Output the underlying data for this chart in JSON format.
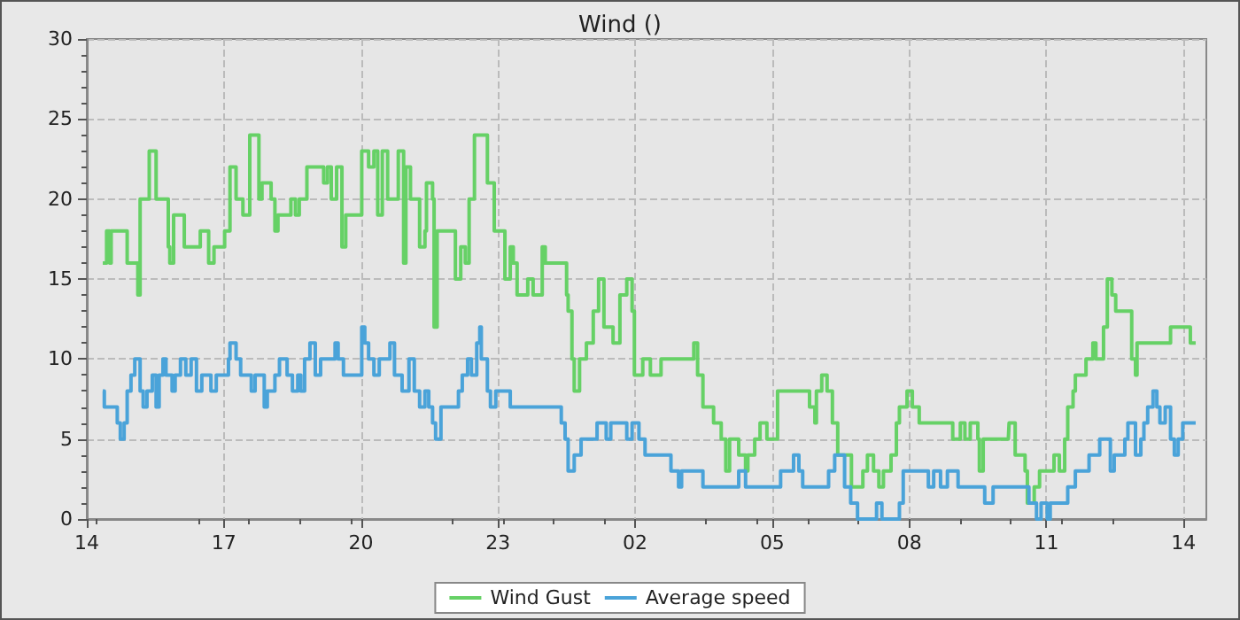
{
  "chart_data": {
    "type": "step",
    "title": "Wind ()",
    "xlim": [
      "--01-01T14:00",
      "--01-02T14:30"
    ],
    "ylim": [
      0,
      30
    ],
    "xticks": [
      {
        "value": "--01-01T14:00",
        "label": "14"
      },
      {
        "value": "--01-01T17:00",
        "label": "17"
      },
      {
        "value": "--01-01T20:00",
        "label": "20"
      },
      {
        "value": "--01-01T23:00",
        "label": "23"
      },
      {
        "value": "--01-02T02:00",
        "label": "02"
      },
      {
        "value": "--01-02T05:00",
        "label": "05"
      },
      {
        "value": "--01-02T08:00",
        "label": "08"
      },
      {
        "value": "--01-02T11:00",
        "label": "11"
      },
      {
        "value": "--01-02T14:00",
        "label": "14"
      }
    ],
    "yticks": [
      0,
      5,
      10,
      15,
      20,
      25,
      30
    ],
    "grid": true,
    "legend": "bottom",
    "marker": "none",
    "line_style": "solid",
    "series": [
      {
        "name": "Wind Gust",
        "color": "#66d166",
        "x": [
          "--01-01T14:21",
          "--01-01T14:26",
          "--01-01T14:30",
          "--01-01T14:32",
          "--01-01T14:51",
          "--01-01T14:53",
          "--01-01T15:05",
          "--01-01T15:07",
          "--01-01T15:10",
          "--01-01T15:22",
          "--01-01T15:31",
          "--01-01T15:47",
          "--01-01T15:49",
          "--01-01T15:54",
          "--01-01T16:01",
          "--01-01T16:08",
          "--01-01T16:20",
          "--01-01T16:29",
          "--01-01T16:40",
          "--01-01T16:47",
          "--01-01T17:01",
          "--01-01T17:08",
          "--01-01T17:16",
          "--01-01T17:25",
          "--01-01T17:34",
          "--01-01T17:46",
          "--01-01T17:50",
          "--01-01T18:02",
          "--01-01T18:07",
          "--01-01T18:11",
          "--01-01T18:23",
          "--01-01T18:28",
          "--01-01T18:34",
          "--01-01T18:39",
          "--01-01T18:49",
          "--01-01T19:07",
          "--01-01T19:11",
          "--01-01T19:16",
          "--01-01T19:21",
          "--01-01T19:28",
          "--01-01T19:35",
          "--01-01T19:40",
          "--01-01T20:01",
          "--01-01T20:10",
          "--01-01T20:17",
          "--01-01T20:22",
          "--01-01T20:28",
          "--01-01T20:35",
          "--01-01T20:49",
          "--01-01T20:56",
          "--01-01T20:59",
          "--01-01T21:05",
          "--01-01T21:17",
          "--01-01T21:24",
          "--01-01T21:26",
          "--01-01T21:34",
          "--01-01T21:36",
          "--01-01T21:40",
          "--01-01T22:01",
          "--01-01T22:04",
          "--01-01T22:11",
          "--01-01T22:17",
          "--01-01T22:22",
          "--01-01T22:29",
          "--01-01T22:46",
          "--01-01T22:55",
          "--01-01T23:07",
          "--01-01T23:09",
          "--01-01T23:16",
          "--01-01T23:20",
          "--01-01T23:25",
          "--01-01T23:34",
          "--01-01T23:39",
          "--01-01T23:46",
          "--01-01T23:58",
          "--01-02T00:02",
          "--01-02T00:26",
          "--01-02T00:30",
          "--01-02T00:32",
          "--01-02T00:37",
          "--01-02T00:40",
          "--01-02T00:47",
          "--01-02T00:56",
          "--01-02T01:05",
          "--01-02T01:12",
          "--01-02T01:19",
          "--01-02T01:31",
          "--01-02T01:40",
          "--01-02T01:49",
          "--01-02T01:56",
          "--01-02T01:59",
          "--01-02T02:10",
          "--01-02T02:20",
          "--01-02T02:34",
          "--01-02T02:59",
          "--01-02T03:17",
          "--01-02T03:22",
          "--01-02T03:29",
          "--01-02T03:43",
          "--01-02T03:53",
          "--01-02T03:59",
          "--01-02T04:04",
          "--01-02T04:09",
          "--01-02T04:16",
          "--01-02T04:25",
          "--01-02T04:28",
          "--01-02T04:37",
          "--01-02T04:44",
          "--01-02T04:53",
          "--01-02T05:07",
          "--01-02T05:44",
          "--01-02T05:49",
          "--01-02T05:56",
          "--01-02T05:58",
          "--01-02T06:05",
          "--01-02T06:12",
          "--01-02T06:19",
          "--01-02T06:26",
          "--01-02T06:44",
          "--01-02T06:59",
          "--01-02T07:05",
          "--01-02T07:13",
          "--01-02T07:20",
          "--01-02T07:26",
          "--01-02T07:36",
          "--01-02T07:43",
          "--01-02T07:47",
          "--01-02T07:57",
          "--01-02T08:04",
          "--01-02T08:13",
          "--01-02T08:55",
          "--01-02T08:57",
          "--01-02T09:07",
          "--01-02T09:13",
          "--01-02T09:20",
          "--01-02T09:30",
          "--01-02T09:32",
          "--01-02T09:37",
          "--01-02T10:10",
          "--01-02T10:11",
          "--01-02T10:19",
          "--01-02T10:28",
          "--01-02T10:32",
          "--01-02T10:35",
          "--01-02T10:44",
          "--01-02T10:51",
          "--01-02T11:03",
          "--01-02T11:10",
          "--01-02T11:17",
          "--01-02T11:24",
          "--01-02T11:28",
          "--01-02T11:35",
          "--01-02T11:38",
          "--01-02T11:52",
          "--01-02T12:01",
          "--01-02T12:05",
          "--01-02T12:15",
          "--01-02T12:20",
          "--01-02T12:26",
          "--01-02T12:31",
          "--01-02T12:38",
          "--01-02T12:52",
          "--01-02T12:57",
          "--01-02T12:59",
          "--01-02T13:13",
          "--01-02T13:18",
          "--01-02T13:43",
          "--01-02T14:09",
          "--01-02T14:16"
        ],
        "values": [
          16,
          18,
          16,
          18,
          18,
          16,
          16,
          14,
          20,
          23,
          20,
          17,
          16,
          19,
          19,
          17,
          17,
          18,
          16,
          17,
          18,
          22,
          20,
          19,
          24,
          20,
          21,
          20,
          18,
          19,
          19,
          20,
          19,
          20,
          22,
          22,
          21,
          22,
          20,
          22,
          17,
          19,
          23,
          22,
          23,
          19,
          23,
          20,
          23,
          16,
          22,
          20,
          17,
          18,
          21,
          20,
          12,
          18,
          18,
          15,
          17,
          16,
          20,
          24,
          21,
          18,
          18,
          15,
          17,
          16,
          14,
          14,
          15,
          14,
          17,
          16,
          16,
          14,
          13,
          10,
          8,
          10,
          11,
          13,
          15,
          12,
          11,
          14,
          15,
          13,
          9,
          10,
          9,
          10,
          10,
          11,
          9,
          7,
          6,
          5,
          3,
          5,
          5,
          4,
          3,
          4,
          5,
          6,
          5,
          8,
          8,
          7,
          6,
          8,
          9,
          8,
          6,
          4,
          2,
          3,
          4,
          3,
          2,
          3,
          4,
          6,
          7,
          8,
          7,
          6,
          6,
          5,
          6,
          5,
          6,
          5,
          3,
          5,
          5,
          6,
          4,
          4,
          3,
          1,
          2,
          3,
          3,
          4,
          3,
          5,
          7,
          8,
          9,
          10,
          11,
          10,
          12,
          15,
          14,
          13,
          13,
          10,
          9,
          11,
          11,
          11,
          12,
          11,
          11
        ]
      },
      {
        "name": "Average speed",
        "color": "#4aa3d9",
        "x": [
          "--01-01T14:21",
          "--01-01T14:23",
          "--01-01T14:35",
          "--01-01T14:40",
          "--01-01T14:44",
          "--01-01T14:49",
          "--01-01T14:53",
          "--01-01T14:58",
          "--01-01T15:03",
          "--01-01T15:10",
          "--01-01T15:14",
          "--01-01T15:19",
          "--01-01T15:26",
          "--01-01T15:31",
          "--01-01T15:35",
          "--01-01T15:40",
          "--01-01T15:44",
          "--01-01T15:52",
          "--01-01T15:56",
          "--01-01T16:03",
          "--01-01T16:10",
          "--01-01T16:17",
          "--01-01T16:24",
          "--01-01T16:31",
          "--01-01T16:43",
          "--01-01T16:50",
          "--01-01T17:06",
          "--01-01T17:08",
          "--01-01T17:16",
          "--01-01T17:22",
          "--01-01T17:36",
          "--01-01T17:41",
          "--01-01T17:53",
          "--01-01T17:57",
          "--01-01T18:07",
          "--01-01T18:13",
          "--01-01T18:23",
          "--01-01T18:30",
          "--01-01T18:37",
          "--01-01T18:41",
          "--01-01T18:46",
          "--01-01T18:53",
          "--01-01T19:00",
          "--01-01T19:07",
          "--01-01T19:26",
          "--01-01T19:30",
          "--01-01T19:37",
          "--01-01T20:01",
          "--01-01T20:05",
          "--01-01T20:10",
          "--01-01T20:17",
          "--01-01T20:24",
          "--01-01T20:38",
          "--01-01T20:44",
          "--01-01T20:54",
          "--01-01T21:03",
          "--01-01T21:10",
          "--01-01T21:17",
          "--01-01T21:24",
          "--01-01T21:29",
          "--01-01T21:34",
          "--01-01T21:38",
          "--01-01T21:45",
          "--01-01T22:08",
          "--01-01T22:13",
          "--01-01T22:20",
          "--01-01T22:25",
          "--01-01T22:32",
          "--01-01T22:36",
          "--01-01T22:38",
          "--01-01T22:46",
          "--01-01T22:50",
          "--01-01T22:57",
          "--01-01T23:16",
          "--01-02T00:23",
          "--01-02T00:28",
          "--01-02T00:32",
          "--01-02T00:40",
          "--01-02T00:49",
          "--01-02T01:10",
          "--01-02T01:22",
          "--01-02T01:28",
          "--01-02T01:49",
          "--01-02T01:56",
          "--01-02T02:05",
          "--01-02T02:13",
          "--01-02T02:47",
          "--01-02T02:57",
          "--01-02T03:01",
          "--01-02T03:29",
          "--01-02T04:16",
          "--01-02T04:25",
          "--01-02T05:11",
          "--01-02T05:28",
          "--01-02T05:35",
          "--01-02T05:40",
          "--01-02T06:14",
          "--01-02T06:22",
          "--01-02T06:35",
          "--01-02T06:43",
          "--01-02T06:52",
          "--01-02T07:17",
          "--01-02T07:24",
          "--01-02T07:47",
          "--01-02T07:52",
          "--01-02T08:25",
          "--01-02T08:32",
          "--01-02T08:41",
          "--01-02T08:50",
          "--01-02T09:04",
          "--01-02T09:39",
          "--01-02T09:50",
          "--01-02T10:37",
          "--01-02T10:47",
          "--01-02T10:53",
          "--01-02T11:01",
          "--01-02T11:05",
          "--01-02T11:28",
          "--01-02T11:38",
          "--01-02T11:56",
          "--01-02T12:10",
          "--01-02T12:24",
          "--01-02T12:29",
          "--01-02T12:43",
          "--01-02T12:47",
          "--01-02T12:57",
          "--01-02T13:04",
          "--01-02T13:08",
          "--01-02T13:13",
          "--01-02T13:20",
          "--01-02T13:25",
          "--01-02T13:29",
          "--01-02T13:36",
          "--01-02T13:43",
          "--01-02T13:48",
          "--01-02T13:53",
          "--01-02T13:59",
          "--01-02T14:16"
        ],
        "values": [
          8,
          7,
          7,
          6,
          5,
          6,
          8,
          9,
          10,
          8,
          7,
          8,
          9,
          7,
          9,
          10,
          9,
          8,
          9,
          10,
          9,
          10,
          8,
          9,
          8,
          9,
          10,
          11,
          10,
          9,
          8,
          9,
          7,
          8,
          9,
          10,
          9,
          8,
          9,
          8,
          10,
          11,
          9,
          10,
          11,
          10,
          9,
          12,
          11,
          10,
          9,
          10,
          11,
          9,
          8,
          10,
          8,
          7,
          8,
          7,
          6,
          5,
          7,
          8,
          9,
          10,
          9,
          11,
          12,
          10,
          8,
          7,
          8,
          7,
          6,
          5,
          3,
          4,
          5,
          6,
          5,
          6,
          5,
          6,
          5,
          4,
          3,
          2,
          3,
          2,
          3,
          2,
          3,
          4,
          3,
          2,
          3,
          4,
          2,
          1,
          0,
          1,
          0,
          1,
          3,
          2,
          3,
          2,
          3,
          2,
          1,
          2,
          1,
          0,
          1,
          0,
          1,
          2,
          3,
          4,
          5,
          3,
          4,
          5,
          6,
          4,
          5,
          6,
          7,
          8,
          7,
          6,
          7,
          5,
          4,
          5,
          6,
          6
        ]
      }
    ]
  }
}
